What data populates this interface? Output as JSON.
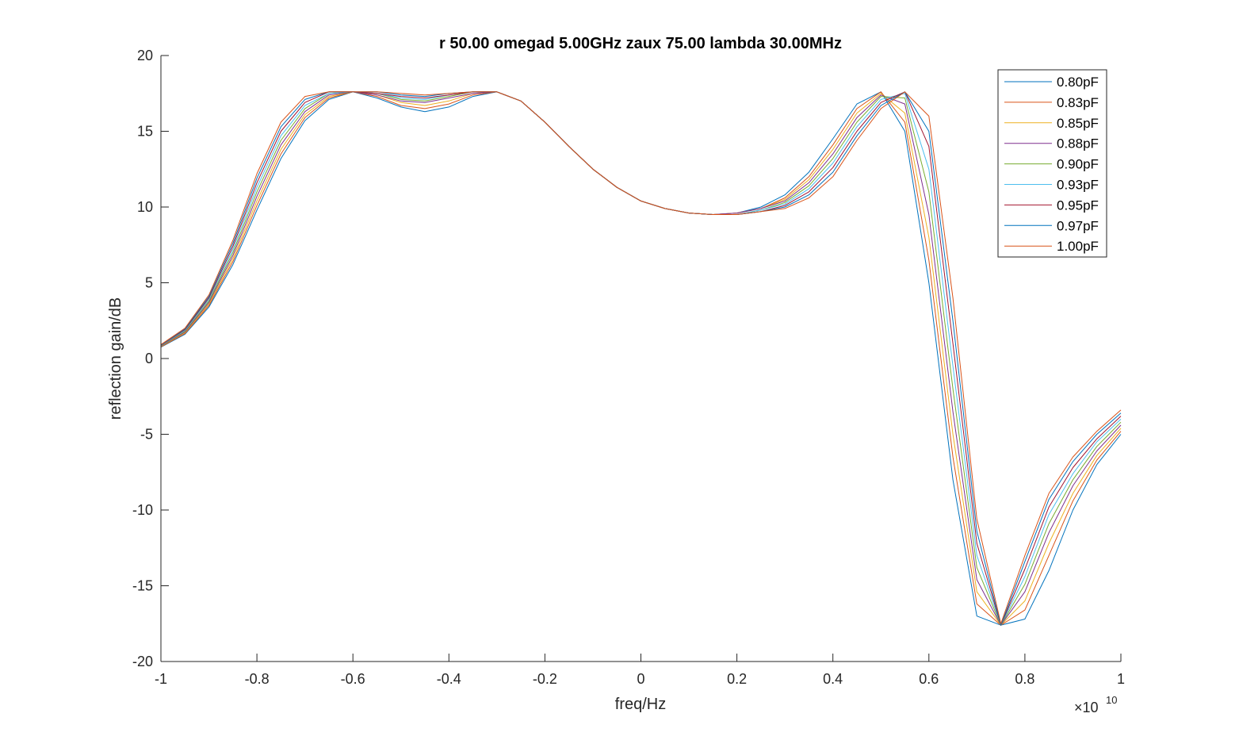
{
  "chart_data": {
    "type": "line",
    "title": "r 50.00 omegad 5.00GHz zaux 75.00 lambda 30.00MHz",
    "xlabel": "freq/Hz",
    "ylabel": "reflection gain/dB",
    "x_exponent_base": "×10",
    "x_exponent_power": "10",
    "xlim": [
      -1,
      1
    ],
    "ylim": [
      -20,
      20
    ],
    "x_ticks": [
      -1,
      -0.8,
      -0.6,
      -0.4,
      -0.2,
      0,
      0.2,
      0.4,
      0.6,
      0.8,
      1
    ],
    "x_tick_labels": [
      "-1",
      "-0.8",
      "-0.6",
      "-0.4",
      "-0.2",
      "0",
      "0.2",
      "0.4",
      "0.6",
      "0.8",
      "1"
    ],
    "y_ticks": [
      -20,
      -15,
      -10,
      -5,
      0,
      5,
      10,
      15,
      20
    ],
    "y_tick_labels": [
      "-20",
      "-15",
      "-10",
      "-5",
      "0",
      "5",
      "10",
      "15",
      "20"
    ],
    "grid": false,
    "legend_position": "top-right",
    "series": [
      {
        "name": "0.80pF",
        "color": "#0072BD",
        "values": [
          0.75,
          1.6,
          3.4,
          6.2,
          9.8,
          13.2,
          15.7,
          17.1,
          17.6,
          17.2,
          16.6,
          16.3,
          16.6,
          17.3,
          17.6,
          17.0,
          15.6,
          14.0,
          12.5,
          11.3,
          10.4,
          9.9,
          9.6,
          9.5,
          9.6,
          10.0,
          10.8,
          12.3,
          14.5,
          16.8,
          17.6,
          15.0,
          5.0,
          -8.0,
          -17.0,
          -17.6,
          -17.2,
          -14.0,
          -10.0,
          -7.0,
          -5.0
        ]
      },
      {
        "name": "0.83pF",
        "color": "#D95319",
        "values": [
          0.77,
          1.65,
          3.5,
          6.4,
          10.1,
          13.5,
          15.9,
          17.2,
          17.6,
          17.3,
          16.7,
          16.5,
          16.8,
          17.4,
          17.6,
          17.0,
          15.6,
          14.0,
          12.5,
          11.3,
          10.4,
          9.9,
          9.6,
          9.5,
          9.6,
          9.9,
          10.6,
          12.0,
          14.1,
          16.5,
          17.6,
          15.6,
          6.5,
          -6.5,
          -16.2,
          -17.6,
          -16.6,
          -13.0,
          -9.4,
          -6.7,
          -4.8
        ]
      },
      {
        "name": "0.85pF",
        "color": "#EDB120",
        "values": [
          0.8,
          1.7,
          3.6,
          6.6,
          10.4,
          13.8,
          16.1,
          17.3,
          17.6,
          17.4,
          16.9,
          16.7,
          17.0,
          17.5,
          17.6,
          17.0,
          15.6,
          14.0,
          12.5,
          11.3,
          10.4,
          9.9,
          9.6,
          9.5,
          9.6,
          9.9,
          10.5,
          11.8,
          13.8,
          16.2,
          17.5,
          16.2,
          8.0,
          -5.0,
          -15.4,
          -17.6,
          -16.0,
          -12.2,
          -8.9,
          -6.4,
          -4.6
        ]
      },
      {
        "name": "0.88pF",
        "color": "#7E2F8E",
        "values": [
          0.82,
          1.75,
          3.7,
          6.8,
          10.7,
          14.1,
          16.3,
          17.4,
          17.6,
          17.4,
          17.0,
          16.9,
          17.2,
          17.5,
          17.6,
          17.0,
          15.6,
          14.0,
          12.5,
          11.3,
          10.4,
          9.9,
          9.6,
          9.5,
          9.6,
          9.9,
          10.4,
          11.6,
          13.5,
          15.9,
          17.4,
          16.8,
          9.5,
          -3.5,
          -14.6,
          -17.6,
          -15.4,
          -11.5,
          -8.4,
          -6.1,
          -4.4
        ]
      },
      {
        "name": "0.90pF",
        "color": "#77AC30",
        "values": [
          0.84,
          1.8,
          3.8,
          7.0,
          11.0,
          14.4,
          16.5,
          17.5,
          17.6,
          17.5,
          17.1,
          17.0,
          17.3,
          17.6,
          17.6,
          17.0,
          15.6,
          14.0,
          12.5,
          11.3,
          10.4,
          9.9,
          9.6,
          9.5,
          9.5,
          9.8,
          10.3,
          11.4,
          13.2,
          15.6,
          17.3,
          17.2,
          11.0,
          -2.0,
          -13.8,
          -17.6,
          -14.9,
          -10.9,
          -8.0,
          -5.8,
          -4.2
        ]
      },
      {
        "name": "0.93pF",
        "color": "#4DBEEE",
        "values": [
          0.86,
          1.85,
          3.9,
          7.2,
          11.3,
          14.7,
          16.7,
          17.5,
          17.6,
          17.5,
          17.2,
          17.1,
          17.4,
          17.6,
          17.6,
          17.0,
          15.6,
          14.0,
          12.5,
          11.3,
          10.4,
          9.9,
          9.6,
          9.5,
          9.5,
          9.8,
          10.2,
          11.2,
          12.9,
          15.3,
          17.1,
          17.5,
          12.5,
          -0.5,
          -13.0,
          -17.6,
          -14.4,
          -10.3,
          -7.6,
          -5.5,
          -4.0
        ]
      },
      {
        "name": "0.95pF",
        "color": "#A2142F",
        "values": [
          0.88,
          1.9,
          4.0,
          7.4,
          11.6,
          15.0,
          16.9,
          17.6,
          17.6,
          17.5,
          17.3,
          17.2,
          17.4,
          17.6,
          17.6,
          17.0,
          15.6,
          14.0,
          12.5,
          11.3,
          10.4,
          9.9,
          9.6,
          9.5,
          9.5,
          9.7,
          10.1,
          11.0,
          12.6,
          15.0,
          16.9,
          17.6,
          14.0,
          1.0,
          -12.2,
          -17.6,
          -13.9,
          -9.8,
          -7.2,
          -5.3,
          -3.8
        ]
      },
      {
        "name": "0.97pF",
        "color": "#0072BD",
        "values": [
          0.9,
          1.95,
          4.1,
          7.6,
          11.9,
          15.3,
          17.1,
          17.6,
          17.6,
          17.6,
          17.4,
          17.3,
          17.5,
          17.6,
          17.6,
          17.0,
          15.6,
          14.0,
          12.5,
          11.3,
          10.4,
          9.9,
          9.6,
          9.5,
          9.5,
          9.7,
          10.0,
          10.8,
          12.3,
          14.7,
          16.7,
          17.6,
          15.0,
          2.5,
          -11.4,
          -17.6,
          -13.4,
          -9.3,
          -6.8,
          -5.0,
          -3.6
        ]
      },
      {
        "name": "1.00pF",
        "color": "#D95319",
        "values": [
          0.92,
          2.0,
          4.2,
          7.8,
          12.2,
          15.6,
          17.3,
          17.6,
          17.6,
          17.6,
          17.5,
          17.4,
          17.5,
          17.6,
          17.6,
          17.0,
          15.6,
          14.0,
          12.5,
          11.3,
          10.4,
          9.9,
          9.6,
          9.5,
          9.5,
          9.7,
          9.9,
          10.6,
          12.0,
          14.4,
          16.5,
          17.6,
          16.0,
          4.0,
          -10.6,
          -17.5,
          -13.0,
          -8.9,
          -6.5,
          -4.8,
          -3.4
        ]
      }
    ]
  }
}
